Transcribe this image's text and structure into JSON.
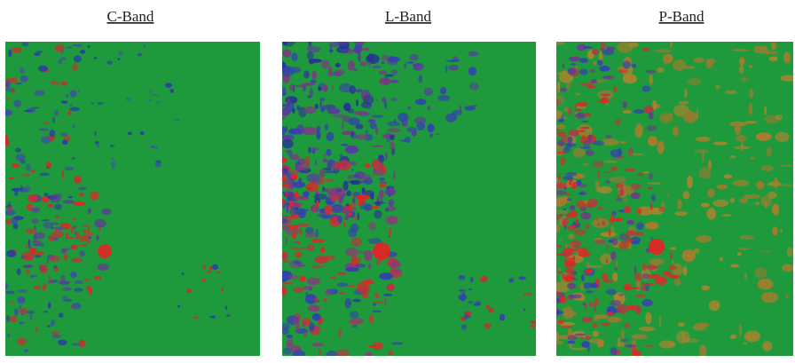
{
  "panels": [
    {
      "label": "C-Band"
    },
    {
      "label": "L-Band"
    },
    {
      "label": "P-Band"
    }
  ]
}
